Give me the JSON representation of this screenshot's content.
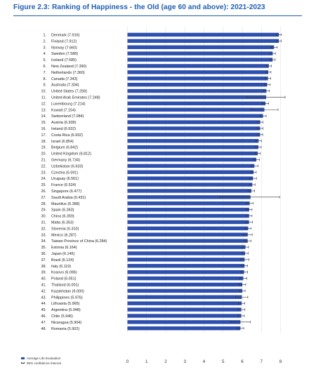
{
  "figure": {
    "title": "Figure 2.3: Ranking of Happiness - the Old (age 60 and above): 2021-2023"
  },
  "legend": {
    "bar_label": "Average Life Evaluation",
    "error_label": "95% confidence interval"
  },
  "colors": {
    "title": "#1f5fb5",
    "bar": "#2d4fae",
    "error_bar": "#333333",
    "grid": "#e1e1e1"
  },
  "chart_data": {
    "type": "bar",
    "orientation": "horizontal",
    "xlim": [
      0,
      8
    ],
    "x_ticks": [
      0,
      1,
      2,
      3,
      4,
      5,
      6,
      7,
      8
    ],
    "grid": true,
    "legend_position": "bottom-left",
    "categories": [
      "1. Denmark (7.916)",
      "2. Finland (7.912)",
      "3. Norway (7.660)",
      "4. Sweden (7.588)",
      "5. Iceland (7.585)",
      "6. New Zealand (7.390)",
      "7. Netherlands (7.360)",
      "8. Canada (7.343)",
      "9. Australia (7.304)",
      "10. United States (7.258)",
      "11. United Arab Emirates (7.248)",
      "12. Luxembourg (7.214)",
      "13. Kuwait (7.154)",
      "14. Switzerland (7.084)",
      "15. Austria (6.939)",
      "16. Ireland (6.932)",
      "17. Costa Rica (6.932)",
      "18. Israel (6.854)",
      "19. Belgium (6.842)",
      "20. United Kingdom (6.812)",
      "21. Germany (6.734)",
      "22. Uzbekistan (6.633)",
      "23. Czechia (6.591)",
      "24. Uruguay (6.561)",
      "25. France (6.524)",
      "26. Singapore (6.477)",
      "27. Saudi Arabia (6.431)",
      "28. Mauritius (6.388)",
      "29. Spain (6.363)",
      "30. China (6.359)",
      "31. Malta (6.353)",
      "32. Slovenia (6.310)",
      "33. Mexico (6.287)",
      "34. Taiwan Province of China (6.284)",
      "35. Estonia (6.164)",
      "36. Japan (6.146)",
      "37. Brazil (6.124)",
      "38. Italy (6.119)",
      "39. Kosovo (6.096)",
      "40. Poland (6.051)",
      "41. Thailand (6.001)",
      "42. Kazakhstan (6.000)",
      "43. Philippines (5.976)",
      "44. Lithuania (5.965)",
      "45. Argentina (5.948)",
      "46. Chile (5.946)",
      "47. Nicaragua (5.904)",
      "48. Romania (5.902)"
    ],
    "values": [
      7.916,
      7.912,
      7.66,
      7.588,
      7.585,
      7.39,
      7.36,
      7.343,
      7.304,
      7.258,
      7.248,
      7.214,
      7.154,
      7.084,
      6.939,
      6.932,
      6.932,
      6.854,
      6.842,
      6.812,
      6.734,
      6.633,
      6.591,
      6.561,
      6.524,
      6.477,
      6.431,
      6.388,
      6.363,
      6.359,
      6.353,
      6.31,
      6.287,
      6.284,
      6.164,
      6.146,
      6.124,
      6.119,
      6.096,
      6.051,
      6.001,
      6.0,
      5.976,
      5.965,
      5.948,
      5.946,
      5.904,
      5.902
    ],
    "ci_low": [
      7.78,
      7.8,
      7.5,
      7.45,
      7.45,
      7.25,
      7.22,
      7.2,
      7.15,
      7.1,
      6.25,
      7.05,
      6.45,
      6.92,
      6.8,
      6.78,
      6.8,
      6.71,
      6.7,
      6.68,
      6.57,
      6.45,
      6.45,
      6.38,
      6.38,
      6.3,
      4.85,
      6.2,
      6.22,
      6.21,
      6.18,
      6.16,
      6.05,
      6.11,
      6.0,
      5.98,
      5.9,
      5.96,
      5.91,
      5.86,
      5.82,
      5.85,
      5.66,
      5.8,
      5.76,
      5.78,
      5.38,
      5.72
    ],
    "ci_high": [
      8.05,
      8.03,
      7.83,
      7.73,
      7.72,
      7.53,
      7.5,
      7.49,
      7.46,
      7.42,
      8.24,
      7.38,
      7.87,
      7.25,
      7.08,
      7.09,
      7.07,
      7.0,
      6.99,
      6.94,
      6.9,
      6.82,
      6.73,
      6.74,
      6.67,
      6.65,
      7.95,
      6.57,
      6.51,
      6.51,
      6.53,
      6.46,
      6.52,
      6.46,
      6.33,
      6.31,
      6.35,
      6.28,
      6.28,
      6.24,
      6.18,
      6.15,
      6.29,
      6.13,
      6.14,
      6.11,
      6.42,
      6.08
    ]
  }
}
